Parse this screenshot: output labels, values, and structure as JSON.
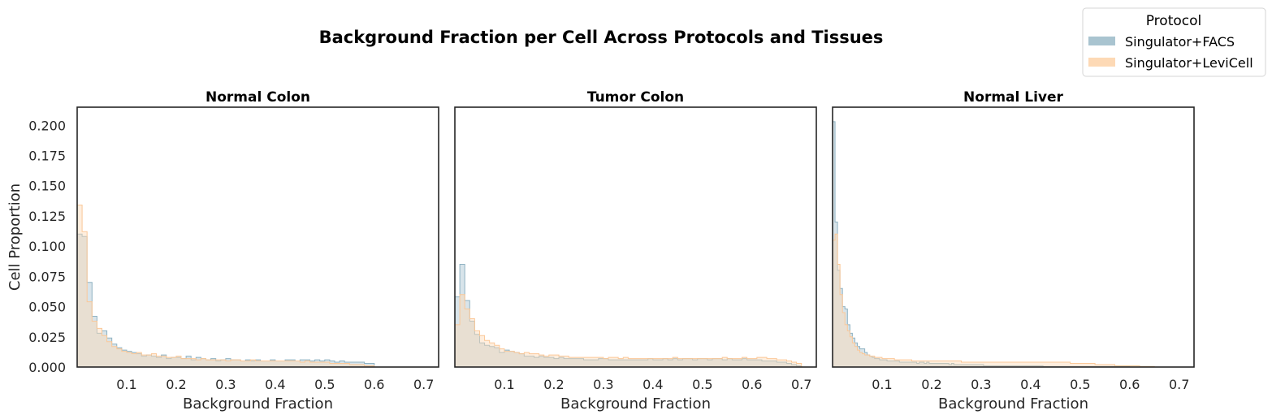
{
  "figure": {
    "title": "Background Fraction per Cell Across Protocols and Tissues"
  },
  "legend": {
    "title": "Protocol",
    "placement": "top-right",
    "entries": [
      {
        "label": "Singulator+FACS",
        "color": "#a9c4d0"
      },
      {
        "label": "Singulator+LeviCell",
        "color": "#fdd9b5"
      }
    ]
  },
  "chart_data": [
    {
      "type": "histogram",
      "title": "Normal Colon",
      "xlabel": "Background Fraction",
      "ylabel": "Cell Proportion",
      "xlim": [
        0.0,
        0.73
      ],
      "ylim": [
        0.0,
        0.215
      ],
      "xticks": [
        "0.1",
        "0.2",
        "0.3",
        "0.4",
        "0.5",
        "0.6",
        "0.7"
      ],
      "yticks": [
        "0.000",
        "0.025",
        "0.050",
        "0.075",
        "0.100",
        "0.125",
        "0.150",
        "0.175",
        "0.200"
      ],
      "grid": false,
      "series": [
        {
          "name": "Singulator+FACS",
          "color": "#a9c4d0",
          "x_start": 0.0,
          "bin_width": 0.01,
          "values": [
            0.11,
            0.108,
            0.07,
            0.042,
            0.028,
            0.03,
            0.024,
            0.019,
            0.016,
            0.014,
            0.013,
            0.012,
            0.011,
            0.009,
            0.01,
            0.009,
            0.008,
            0.01,
            0.007,
            0.008,
            0.008,
            0.007,
            0.009,
            0.006,
            0.008,
            0.007,
            0.006,
            0.007,
            0.005,
            0.006,
            0.007,
            0.006,
            0.006,
            0.005,
            0.006,
            0.005,
            0.006,
            0.005,
            0.005,
            0.006,
            0.005,
            0.005,
            0.006,
            0.006,
            0.005,
            0.006,
            0.006,
            0.005,
            0.006,
            0.005,
            0.006,
            0.005,
            0.004,
            0.005,
            0.004,
            0.004,
            0.004,
            0.004,
            0.003,
            0.003
          ]
        },
        {
          "name": "Singulator+LeviCell",
          "color": "#fdd9b5",
          "x_start": 0.0,
          "bin_width": 0.01,
          "values": [
            0.134,
            0.112,
            0.054,
            0.038,
            0.032,
            0.026,
            0.021,
            0.017,
            0.015,
            0.013,
            0.012,
            0.011,
            0.012,
            0.01,
            0.01,
            0.011,
            0.009,
            0.009,
            0.008,
            0.008,
            0.009,
            0.007,
            0.007,
            0.007,
            0.006,
            0.007,
            0.006,
            0.006,
            0.006,
            0.006,
            0.005,
            0.006,
            0.006,
            0.005,
            0.005,
            0.006,
            0.005,
            0.005,
            0.005,
            0.005,
            0.005,
            0.005,
            0.005,
            0.005,
            0.005,
            0.004,
            0.005,
            0.004,
            0.004,
            0.004,
            0.004,
            0.003,
            0.003,
            0.003,
            0.003,
            0.002,
            0.002,
            0.002,
            0.001,
            0.001
          ]
        }
      ]
    },
    {
      "type": "histogram",
      "title": "Tumor Colon",
      "xlabel": "Background Fraction",
      "ylabel": "",
      "xlim": [
        0.0,
        0.73
      ],
      "ylim": [
        0.0,
        0.215
      ],
      "xticks": [
        "0.1",
        "0.2",
        "0.3",
        "0.4",
        "0.5",
        "0.6",
        "0.7"
      ],
      "yticks": [],
      "grid": false,
      "series": [
        {
          "name": "Singulator+FACS",
          "color": "#a9c4d0",
          "x_start": 0.0,
          "bin_width": 0.01,
          "values": [
            0.058,
            0.085,
            0.055,
            0.038,
            0.027,
            0.02,
            0.018,
            0.017,
            0.016,
            0.012,
            0.014,
            0.013,
            0.012,
            0.011,
            0.009,
            0.009,
            0.008,
            0.009,
            0.008,
            0.008,
            0.007,
            0.008,
            0.007,
            0.007,
            0.007,
            0.007,
            0.006,
            0.006,
            0.006,
            0.007,
            0.007,
            0.006,
            0.006,
            0.006,
            0.006,
            0.006,
            0.006,
            0.006,
            0.006,
            0.007,
            0.006,
            0.006,
            0.007,
            0.006,
            0.007,
            0.006,
            0.007,
            0.007,
            0.006,
            0.007,
            0.007,
            0.006,
            0.007,
            0.007,
            0.006,
            0.007,
            0.006,
            0.006,
            0.007,
            0.006,
            0.006,
            0.006,
            0.005,
            0.005,
            0.005,
            0.004,
            0.004,
            0.003,
            0.002,
            0.001
          ]
        },
        {
          "name": "Singulator+LeviCell",
          "color": "#fdd9b5",
          "x_start": 0.0,
          "bin_width": 0.01,
          "values": [
            0.035,
            0.06,
            0.048,
            0.04,
            0.03,
            0.026,
            0.022,
            0.02,
            0.018,
            0.015,
            0.013,
            0.013,
            0.012,
            0.011,
            0.012,
            0.011,
            0.011,
            0.01,
            0.009,
            0.01,
            0.01,
            0.009,
            0.009,
            0.008,
            0.008,
            0.008,
            0.008,
            0.008,
            0.008,
            0.008,
            0.007,
            0.008,
            0.008,
            0.007,
            0.008,
            0.007,
            0.007,
            0.007,
            0.007,
            0.007,
            0.007,
            0.007,
            0.007,
            0.007,
            0.008,
            0.007,
            0.007,
            0.007,
            0.007,
            0.007,
            0.007,
            0.007,
            0.007,
            0.007,
            0.008,
            0.007,
            0.007,
            0.007,
            0.008,
            0.007,
            0.007,
            0.008,
            0.008,
            0.007,
            0.007,
            0.006,
            0.006,
            0.005,
            0.004,
            0.003
          ]
        }
      ]
    },
    {
      "type": "histogram",
      "title": "Normal Liver",
      "xlabel": "Background Fraction",
      "ylabel": "",
      "xlim": [
        0.0,
        0.73
      ],
      "ylim": [
        0.0,
        0.215
      ],
      "xticks": [
        "0.1",
        "0.2",
        "0.3",
        "0.4",
        "0.5",
        "0.6",
        "0.7"
      ],
      "yticks": [],
      "grid": false,
      "series": [
        {
          "name": "Singulator+FACS",
          "color": "#a9c4d0",
          "x_start": 0.0,
          "bin_width": 0.005,
          "values": [
            0.203,
            0.12,
            0.08,
            0.065,
            0.05,
            0.048,
            0.035,
            0.028,
            0.024,
            0.02,
            0.017,
            0.015,
            0.015,
            0.012,
            0.01,
            0.009,
            0.008,
            0.007,
            0.007,
            0.006,
            0.006,
            0.006,
            0.005,
            0.005,
            0.005,
            0.005,
            0.005,
            0.004,
            0.004,
            0.004,
            0.004,
            0.004,
            0.004,
            0.004,
            0.003,
            0.004,
            0.004,
            0.003,
            0.004,
            0.003,
            0.003,
            0.003,
            0.003,
            0.003,
            0.003,
            0.003,
            0.003,
            0.002,
            0.003,
            0.002,
            0.002,
            0.002,
            0.002,
            0.002,
            0.002,
            0.002,
            0.002,
            0.002,
            0.002,
            0.002,
            0.002,
            0.001,
            0.001,
            0.001,
            0.001,
            0.001,
            0.001,
            0.001,
            0.001,
            0.001,
            0.001,
            0.001,
            0.001,
            0.001,
            0.001,
            0.001,
            0.001,
            0.001,
            0.001,
            0.001,
            0.001,
            0.001,
            0.001,
            0.001,
            0.001,
            0.0005,
            0.0005,
            0.0005,
            0.0005,
            0.0005,
            0.0005,
            0.0005,
            0.0005,
            0.0005,
            0.0005,
            0.0005,
            0.0005,
            0.0005,
            0.0005,
            0.0005,
            0.0005,
            0.0005,
            0.0005,
            0.0005,
            0.0005,
            0.0005,
            0.0005,
            0.0005,
            0.0005,
            0.0005,
            0.0005,
            0.0005,
            0.0005,
            0.0005,
            0.0005,
            0.0005,
            0.0005,
            0.0005,
            0.0005,
            0.0005
          ]
        },
        {
          "name": "Singulator+LeviCell",
          "color": "#fdd9b5",
          "x_start": 0.0,
          "bin_width": 0.005,
          "values": [
            0.105,
            0.11,
            0.085,
            0.06,
            0.045,
            0.035,
            0.03,
            0.025,
            0.02,
            0.017,
            0.014,
            0.012,
            0.011,
            0.01,
            0.01,
            0.009,
            0.009,
            0.008,
            0.008,
            0.008,
            0.007,
            0.007,
            0.007,
            0.007,
            0.007,
            0.006,
            0.006,
            0.006,
            0.006,
            0.006,
            0.006,
            0.006,
            0.005,
            0.005,
            0.005,
            0.005,
            0.005,
            0.005,
            0.005,
            0.005,
            0.005,
            0.005,
            0.005,
            0.005,
            0.005,
            0.005,
            0.005,
            0.005,
            0.005,
            0.005,
            0.005,
            0.005,
            0.004,
            0.004,
            0.004,
            0.004,
            0.004,
            0.004,
            0.004,
            0.004,
            0.004,
            0.004,
            0.004,
            0.004,
            0.004,
            0.004,
            0.004,
            0.004,
            0.004,
            0.004,
            0.004,
            0.004,
            0.004,
            0.004,
            0.004,
            0.004,
            0.004,
            0.004,
            0.004,
            0.004,
            0.004,
            0.004,
            0.004,
            0.004,
            0.004,
            0.004,
            0.004,
            0.004,
            0.004,
            0.004,
            0.004,
            0.004,
            0.004,
            0.004,
            0.004,
            0.004,
            0.003,
            0.003,
            0.003,
            0.003,
            0.003,
            0.003,
            0.003,
            0.003,
            0.003,
            0.003,
            0.002,
            0.002,
            0.002,
            0.002,
            0.002,
            0.002,
            0.002,
            0.002,
            0.001,
            0.001,
            0.001,
            0.001,
            0.001,
            0.001,
            0.001,
            0.001,
            0.001,
            0.001,
            0.0005,
            0.0005,
            0.0005,
            0.0005,
            0.0005,
            0.0005
          ]
        }
      ]
    }
  ]
}
